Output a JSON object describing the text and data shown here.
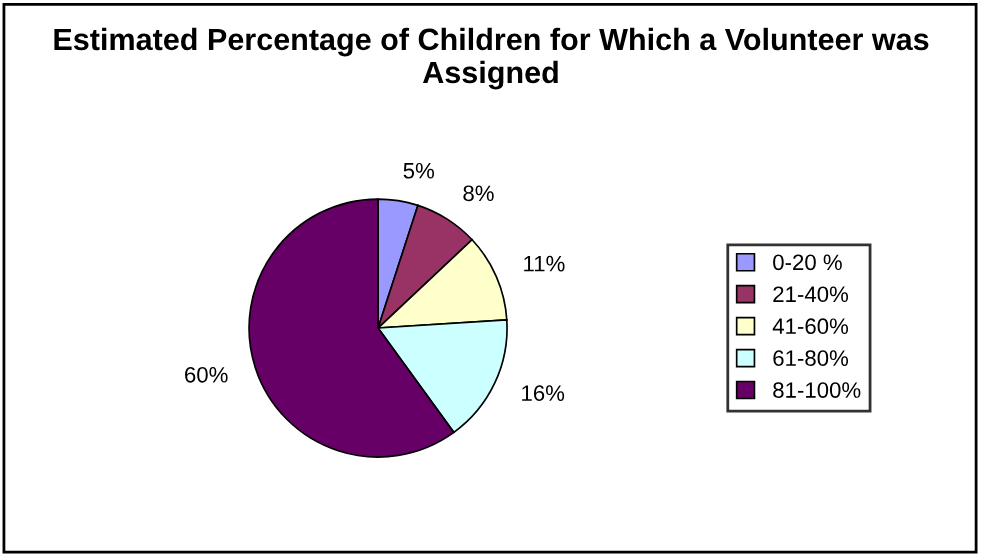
{
  "chart_data": {
    "type": "pie",
    "title": "Estimated Percentage of Children for Which a Volunteer was Assigned",
    "categories": [
      "0-20 %",
      "21-40%",
      "41-60%",
      "61-80%",
      "81-100%"
    ],
    "values": [
      5,
      8,
      11,
      16,
      60
    ],
    "colors": [
      "#9999ff",
      "#993366",
      "#ffffcc",
      "#ccffff",
      "#660066"
    ],
    "value_labels": [
      "5%",
      "8%",
      "11%",
      "16%",
      "60%"
    ],
    "legend": "right"
  }
}
